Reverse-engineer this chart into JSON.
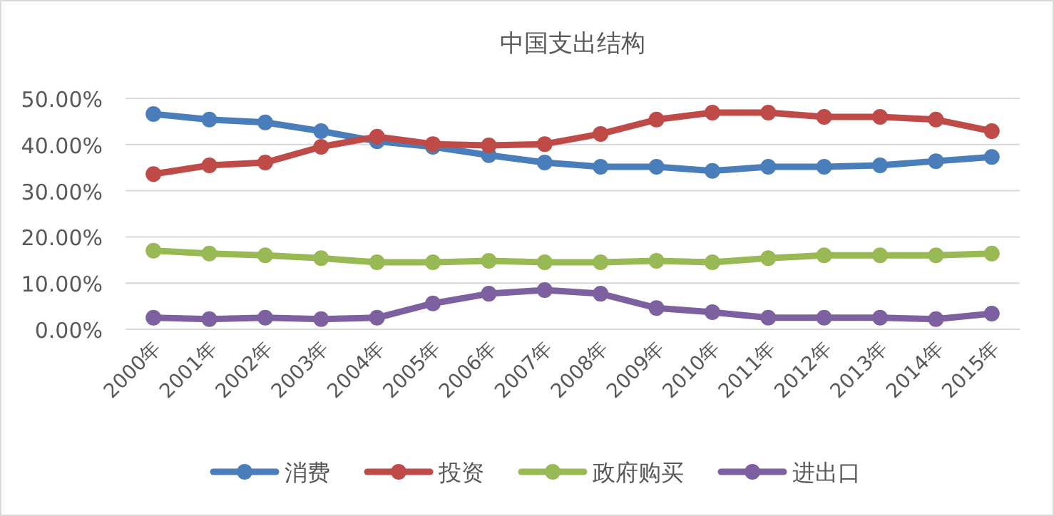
{
  "chart_data": {
    "type": "line",
    "title": "中国支出结构",
    "categories": [
      "2000年",
      "2001年",
      "2002年",
      "2003年",
      "2004年",
      "2005年",
      "2006年",
      "2007年",
      "2008年",
      "2009年",
      "2010年",
      "2011年",
      "2012年",
      "2013年",
      "2014年",
      "2015年"
    ],
    "series": [
      {
        "name": "消费",
        "color": "#4a7ebb",
        "values": [
          46.6,
          45.4,
          44.8,
          42.9,
          40.7,
          39.5,
          37.7,
          36.1,
          35.2,
          35.2,
          34.3,
          35.2,
          35.2,
          35.5,
          36.4,
          37.3
        ]
      },
      {
        "name": "投资",
        "color": "#be4b48",
        "values": [
          33.6,
          35.5,
          36.1,
          39.5,
          41.7,
          40.1,
          39.8,
          40.1,
          42.3,
          45.4,
          46.9,
          46.9,
          46.0,
          46.0,
          45.4,
          42.9
        ]
      },
      {
        "name": "政府购买",
        "color": "#98b954",
        "values": [
          17.0,
          16.4,
          16.0,
          15.4,
          14.5,
          14.5,
          14.8,
          14.5,
          14.5,
          14.8,
          14.5,
          15.4,
          16.0,
          16.0,
          16.0,
          16.4
        ]
      },
      {
        "name": "进出口",
        "color": "#7d60a0",
        "values": [
          2.5,
          2.2,
          2.5,
          2.2,
          2.5,
          5.6,
          7.7,
          8.5,
          7.7,
          4.6,
          3.7,
          2.5,
          2.5,
          2.5,
          2.2,
          3.4
        ]
      }
    ],
    "ylim": [
      0,
      50
    ],
    "yticks": [
      {
        "value": 0,
        "label": "0.00%"
      },
      {
        "value": 10,
        "label": "10.00%"
      },
      {
        "value": 20,
        "label": "20.00%"
      },
      {
        "value": 30,
        "label": "30.00%"
      },
      {
        "value": 40,
        "label": "40.00%"
      },
      {
        "value": 50,
        "label": "50.00%"
      }
    ],
    "grid": "y",
    "legend": "bottom",
    "marker": "circle",
    "line_style": "solid"
  }
}
